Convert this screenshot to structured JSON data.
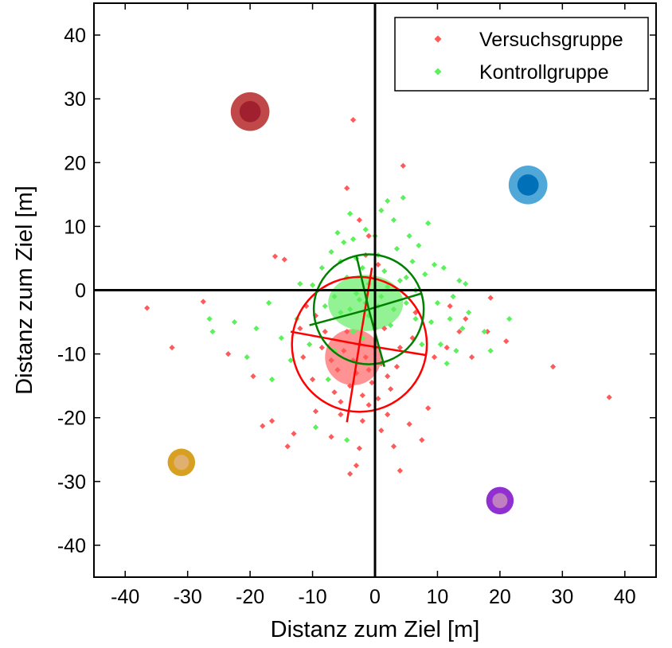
{
  "chart_data": {
    "type": "scatter",
    "xlabel": "Distanz zum Ziel [m]",
    "ylabel": "Distanz zum Ziel [m]",
    "xlim": [
      -45,
      45
    ],
    "ylim": [
      -45,
      45
    ],
    "xticks": [
      -40,
      -30,
      -20,
      -10,
      0,
      10,
      20,
      30,
      40
    ],
    "yticks": [
      -40,
      -30,
      -20,
      -10,
      0,
      10,
      20,
      30,
      40
    ],
    "xtick_labels": [
      "-40",
      "-30",
      "-20",
      "-10",
      "0",
      "10",
      "20",
      "30",
      "40"
    ],
    "ytick_labels": [
      "-40",
      "-30",
      "-20",
      "-10",
      "0",
      "10",
      "20",
      "30",
      "40"
    ],
    "grid": false,
    "legend_position": "top-right",
    "series": [
      {
        "name": "Versuchsgruppe",
        "color": "#ff5a5a",
        "marker": "diamond",
        "points": [
          [
            -36.5,
            -2.8
          ],
          [
            -32.5,
            -9.0
          ],
          [
            -27.5,
            -1.8
          ],
          [
            -23.5,
            -10.0
          ],
          [
            -19.5,
            -13.5
          ],
          [
            -18.0,
            -21.3
          ],
          [
            -16.0,
            5.3
          ],
          [
            -14.5,
            4.8
          ],
          [
            -14.0,
            -24.5
          ],
          [
            -13.0,
            -22.5
          ],
          [
            -16.5,
            -20.5
          ],
          [
            -10.0,
            -14.0
          ],
          [
            -9.5,
            -19.0
          ],
          [
            -11.5,
            -10.5
          ],
          [
            -8.0,
            -6.5
          ],
          [
            -7.0,
            -23.0
          ],
          [
            -5.5,
            -17.5
          ],
          [
            -4.5,
            16.0
          ],
          [
            -3.5,
            26.7
          ],
          [
            -3.0,
            -27.5
          ],
          [
            -4.0,
            -28.8
          ],
          [
            -2.5,
            -24.8
          ],
          [
            -2.5,
            11.0
          ],
          [
            -1.5,
            5.5
          ],
          [
            -1.0,
            8.5
          ],
          [
            0.5,
            4.0
          ],
          [
            1.0,
            -22.0
          ],
          [
            2.0,
            -13.5
          ],
          [
            3.0,
            -24.5
          ],
          [
            4.5,
            19.5
          ],
          [
            4.0,
            -28.3
          ],
          [
            5.5,
            -21.0
          ],
          [
            6.0,
            -7.5
          ],
          [
            6.5,
            -3.5
          ],
          [
            7.5,
            -23.5
          ],
          [
            8.5,
            -18.5
          ],
          [
            9.5,
            -10.5
          ],
          [
            11.5,
            -9.0
          ],
          [
            12.0,
            -2.5
          ],
          [
            13.5,
            -6.5
          ],
          [
            14.5,
            -4.5
          ],
          [
            15.5,
            -10.5
          ],
          [
            18.0,
            -6.5
          ],
          [
            18.5,
            -1.2
          ],
          [
            21.0,
            -8.0
          ],
          [
            28.5,
            -12.0
          ],
          [
            37.5,
            -16.8
          ],
          [
            -6.0,
            -12.5
          ],
          [
            -5.0,
            -9.5
          ],
          [
            -4.0,
            -15.0
          ],
          [
            -3.5,
            -11.0
          ],
          [
            -3.0,
            -13.0
          ],
          [
            -2.5,
            -8.5
          ],
          [
            -2.0,
            -16.5
          ],
          [
            -1.5,
            -10.5
          ],
          [
            -1.0,
            -12.5
          ],
          [
            -0.5,
            -14.5
          ],
          [
            0.0,
            -9.0
          ],
          [
            0.5,
            -17.0
          ],
          [
            1.0,
            -11.5
          ],
          [
            -7.0,
            -11.0
          ],
          [
            -6.5,
            -16.0
          ],
          [
            -8.5,
            -9.0
          ],
          [
            -5.5,
            -19.5
          ],
          [
            2.5,
            -15.5
          ],
          [
            3.5,
            -12.0
          ],
          [
            -9.5,
            -4.0
          ],
          [
            -11.0,
            -2.5
          ],
          [
            -2.0,
            -20.5
          ],
          [
            -4.5,
            -6.5
          ],
          [
            1.5,
            -6.0
          ],
          [
            4.0,
            -9.0
          ],
          [
            -12.0,
            -6.0
          ],
          [
            -1.0,
            -18.0
          ],
          [
            2.0,
            -19.5
          ]
        ]
      },
      {
        "name": "Kontrollgruppe",
        "color": "#5cf05c",
        "marker": "diamond",
        "points": [
          [
            -26.5,
            -4.5
          ],
          [
            -26.0,
            -6.5
          ],
          [
            -22.5,
            -5.0
          ],
          [
            -20.5,
            -10.5
          ],
          [
            -19.0,
            -6.0
          ],
          [
            -17.0,
            -2.0
          ],
          [
            -16.5,
            -14.0
          ],
          [
            -15.0,
            -7.5
          ],
          [
            -13.5,
            -11.0
          ],
          [
            -12.5,
            -4.5
          ],
          [
            -12.0,
            1.0
          ],
          [
            -10.5,
            -8.5
          ],
          [
            -10.0,
            0.8
          ],
          [
            -9.5,
            -21.5
          ],
          [
            -8.5,
            3.5
          ],
          [
            -7.5,
            -14.0
          ],
          [
            -7.0,
            6.0
          ],
          [
            -6.5,
            -9.5
          ],
          [
            -6.0,
            9.0
          ],
          [
            -5.5,
            -3.5
          ],
          [
            -5.0,
            7.5
          ],
          [
            -4.5,
            2.0
          ],
          [
            -4.5,
            -23.5
          ],
          [
            -4.0,
            12.0
          ],
          [
            -3.5,
            -6.5
          ],
          [
            -3.0,
            5.0
          ],
          [
            -2.5,
            -1.5
          ],
          [
            -2.0,
            3.5
          ],
          [
            -1.5,
            9.5
          ],
          [
            -1.0,
            -4.0
          ],
          [
            0.0,
            8.5
          ],
          [
            0.5,
            -2.5
          ],
          [
            1.0,
            12.5
          ],
          [
            1.5,
            3.0
          ],
          [
            2.0,
            14.0
          ],
          [
            2.5,
            -5.5
          ],
          [
            3.0,
            11.0
          ],
          [
            3.5,
            6.5
          ],
          [
            4.0,
            1.5
          ],
          [
            4.5,
            14.5
          ],
          [
            5.0,
            -2.0
          ],
          [
            5.5,
            8.5
          ],
          [
            6.0,
            4.5
          ],
          [
            6.5,
            -4.5
          ],
          [
            7.0,
            7.0
          ],
          [
            7.5,
            -8.5
          ],
          [
            8.0,
            2.5
          ],
          [
            8.5,
            10.5
          ],
          [
            9.0,
            -5.0
          ],
          [
            9.5,
            4.0
          ],
          [
            10.0,
            -2.0
          ],
          [
            10.5,
            -8.5
          ],
          [
            11.0,
            3.5
          ],
          [
            11.5,
            -11.5
          ],
          [
            12.0,
            -4.5
          ],
          [
            12.5,
            -1.0
          ],
          [
            13.0,
            -9.5
          ],
          [
            13.5,
            1.5
          ],
          [
            14.0,
            -6.0
          ],
          [
            14.5,
            1.0
          ],
          [
            15.0,
            -3.5
          ],
          [
            17.5,
            -6.5
          ],
          [
            18.5,
            -9.5
          ],
          [
            21.5,
            -4.5
          ],
          [
            -2.0,
            -7.5
          ],
          [
            -1.5,
            -2.0
          ],
          [
            -1.0,
            1.0
          ],
          [
            0.0,
            -6.0
          ],
          [
            1.0,
            -1.0
          ],
          [
            2.0,
            0.5
          ],
          [
            -3.0,
            -0.5
          ],
          [
            -4.0,
            -3.0
          ],
          [
            3.0,
            -3.0
          ],
          [
            -5.5,
            4.5
          ],
          [
            5.0,
            2.0
          ],
          [
            -6.5,
            -1.0
          ],
          [
            -3.5,
            8.0
          ],
          [
            6.5,
            0.0
          ],
          [
            -8.0,
            -2.5
          ],
          [
            0.5,
            5.5
          ]
        ]
      }
    ],
    "cluster_regions": [
      {
        "series": "Versuchsgruppe",
        "color": "#ff8080",
        "center": [
          -3.5,
          -10.5
        ],
        "radius": [
          4.5,
          4.5
        ]
      },
      {
        "series": "Kontrollgruppe",
        "color": "#80f080",
        "center": [
          -1.5,
          -2.0
        ],
        "radius": [
          6.0,
          4.5
        ]
      }
    ],
    "circles": [
      {
        "series": "Versuchsgruppe",
        "color": "#ff0000",
        "center": [
          -2.5,
          -8.5
        ],
        "radius": 10.8,
        "spokes": [
          [
            -0.5,
            3.5
          ],
          [
            -13.5,
            -6.5
          ],
          [
            8.3,
            -10.2
          ],
          [
            -4.5,
            -20.7
          ]
        ]
      },
      {
        "series": "Kontrollgruppe",
        "color": "#008000",
        "center": [
          -1.0,
          -3.0
        ],
        "radius": 8.8,
        "spokes": [
          [
            -3.0,
            5.5
          ],
          [
            1.5,
            -12.0
          ],
          [
            -10.5,
            -5.5
          ],
          [
            7.5,
            -0.5
          ]
        ]
      }
    ],
    "target_markers": [
      {
        "x": -20.0,
        "y": 28.0,
        "outer": "#c04848",
        "inner": "#a02030",
        "r": 3.1
      },
      {
        "x": 24.5,
        "y": 16.5,
        "outer": "#50a8d8",
        "inner": "#0070b8",
        "r": 3.1
      },
      {
        "x": -31.0,
        "y": -27.0,
        "outer": "#d8a020",
        "inner": "#e0b070",
        "r": 2.2
      },
      {
        "x": 20.0,
        "y": -33.0,
        "outer": "#9030d0",
        "inner": "#c080c0",
        "r": 2.2
      }
    ]
  }
}
